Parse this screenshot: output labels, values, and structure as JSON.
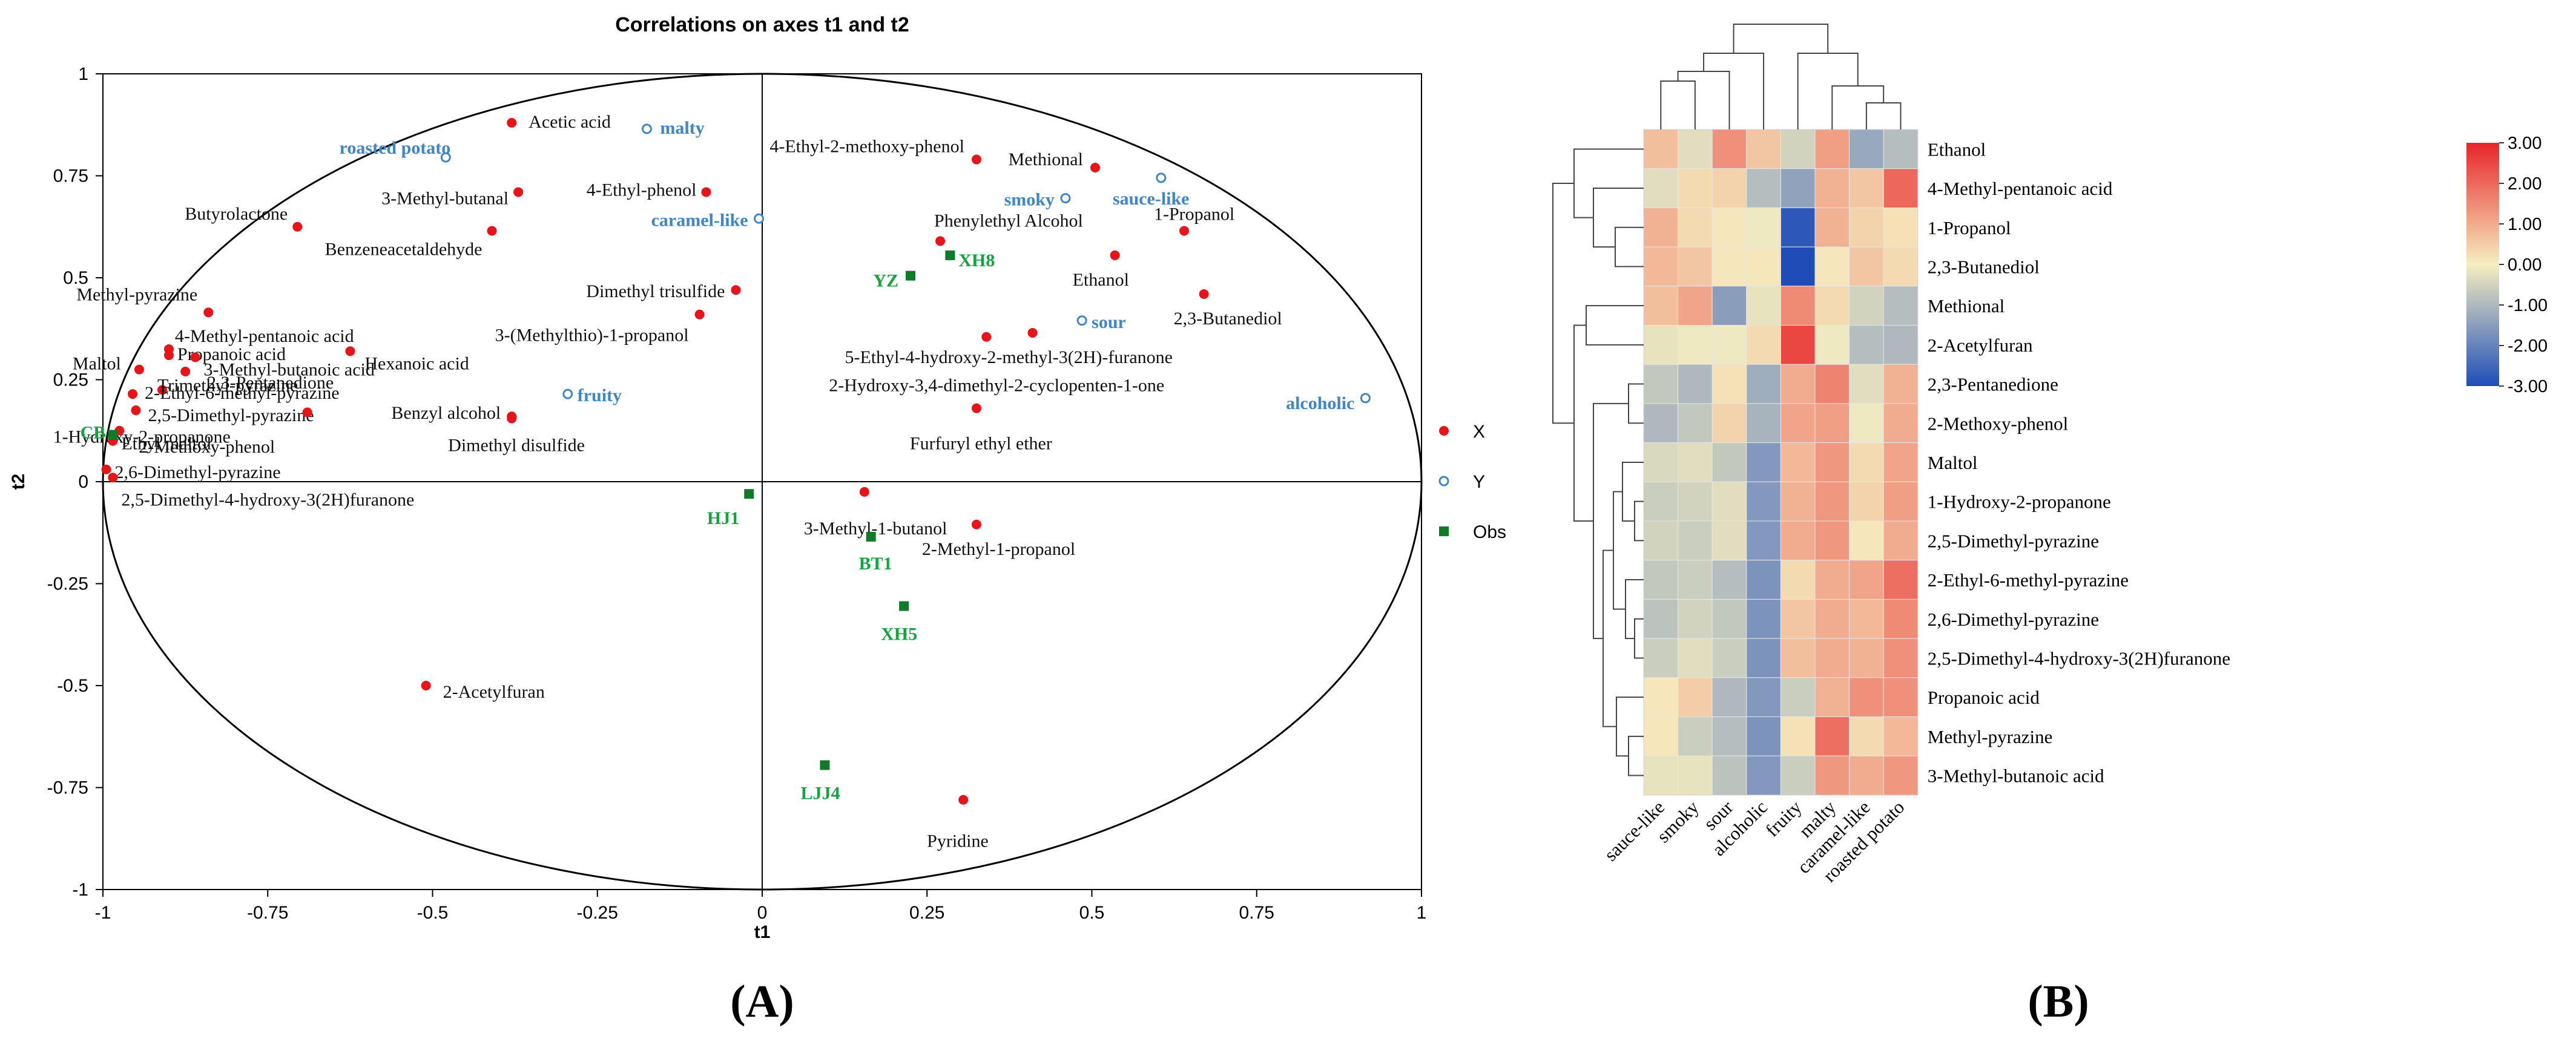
{
  "chart_data": [
    {
      "type": "scatter",
      "panel_label": "(A)",
      "title": "Correlations on axes t1 and t2",
      "xlabel": "t1",
      "ylabel": "t2",
      "xlim": [
        -1,
        1
      ],
      "ylim": [
        -1,
        1
      ],
      "xticks": [
        "-1",
        "-0.75",
        "-0.5",
        "-0.25",
        "0",
        "0.25",
        "0.5",
        "0.75",
        "1"
      ],
      "yticks": [
        "1",
        "0.75",
        "0.5",
        "0.25",
        "0",
        "-0.25",
        "-0.5",
        "-0.75",
        "-1"
      ],
      "legend": [
        "X",
        "Y",
        "Obs"
      ],
      "legend_placement": "right",
      "colors": {
        "X": "#e8141a",
        "Y": "#3f86c8",
        "Obs": "#0f7a27",
        "Obs_label": "#12a53d"
      },
      "series": [
        {
          "name": "X",
          "points": [
            {
              "label": "Acetic acid",
              "x": -0.38,
              "y": 0.88
            },
            {
              "label": "4-Ethyl-phenol",
              "x": -0.085,
              "y": 0.71
            },
            {
              "label": "3-Methyl-butanal",
              "x": -0.37,
              "y": 0.71
            },
            {
              "label": "Butyrolactone",
              "x": -0.705,
              "y": 0.625
            },
            {
              "label": "Benzeneacetaldehyde",
              "x": -0.41,
              "y": 0.615
            },
            {
              "label": "Dimethyl trisulfide",
              "x": -0.04,
              "y": 0.47
            },
            {
              "label": "3-(Methylthio)-1-propanol",
              "x": -0.095,
              "y": 0.41
            },
            {
              "label": "Methyl-pyrazine",
              "x": -0.84,
              "y": 0.415
            },
            {
              "label": "4-Methyl-pentanoic acid",
              "x": -0.9,
              "y": 0.325
            },
            {
              "label": "Propanoic acid",
              "x": -0.9,
              "y": 0.31
            },
            {
              "label": "3-Methyl-butanoic acid",
              "x": -0.86,
              "y": 0.305
            },
            {
              "label": "Hexanoic acid",
              "x": -0.625,
              "y": 0.32
            },
            {
              "label": "Maltol",
              "x": -0.945,
              "y": 0.275
            },
            {
              "label": "2,3-Pentanedione",
              "x": -0.875,
              "y": 0.27
            },
            {
              "label": "Trimethyl-pyrazine",
              "x": -0.91,
              "y": 0.225
            },
            {
              "label": "2-Ethyl-6-methyl-pyrazine",
              "x": -0.955,
              "y": 0.215
            },
            {
              "label": "2,5-Dimethyl-pyrazine",
              "x": -0.95,
              "y": 0.175
            },
            {
              "label": "1-Hydroxy-2-propanone",
              "x": -0.69,
              "y": 0.17
            },
            {
              "label": "2-Methoxy-phenol",
              "x": -0.975,
              "y": 0.125
            },
            {
              "label": "Ethyl maltol",
              "x": -0.985,
              "y": 0.1
            },
            {
              "label": "2,6-Dimethyl-pyrazine",
              "x": -0.995,
              "y": 0.03
            },
            {
              "label": "2,5-Dimethyl-4-hydroxy-3(2H)furanone",
              "x": -0.985,
              "y": 0.01
            },
            {
              "label": "Benzyl alcohol",
              "x": -0.38,
              "y": 0.16
            },
            {
              "label": "Dimethyl disulfide",
              "x": -0.38,
              "y": 0.155
            },
            {
              "label": "4-Ethyl-2-methoxy-phenol",
              "x": 0.325,
              "y": 0.79
            },
            {
              "label": "Methional",
              "x": 0.505,
              "y": 0.77
            },
            {
              "label": "1-Propanol",
              "x": 0.64,
              "y": 0.615
            },
            {
              "label": "Phenylethyl Alcohol",
              "x": 0.27,
              "y": 0.59
            },
            {
              "label": "Ethanol",
              "x": 0.535,
              "y": 0.555
            },
            {
              "label": "2,3-Butanediol",
              "x": 0.67,
              "y": 0.46
            },
            {
              "label": "5-Ethyl-4-hydroxy-2-methyl-3(2H)-furanone",
              "x": 0.41,
              "y": 0.365
            },
            {
              "label": "2-Hydroxy-3,4-dimethyl-2-cyclopenten-1-one",
              "x": 0.34,
              "y": 0.355
            },
            {
              "label": "Furfuryl ethyl ether",
              "x": 0.325,
              "y": 0.18
            },
            {
              "label": "3-Methyl-1-butanol",
              "x": 0.155,
              "y": -0.025
            },
            {
              "label": "2-Methyl-1-propanol",
              "x": 0.325,
              "y": -0.105
            },
            {
              "label": "2-Acetylfuran",
              "x": -0.51,
              "y": -0.5
            },
            {
              "label": "Pyridine",
              "x": 0.305,
              "y": -0.78
            }
          ]
        },
        {
          "name": "Y",
          "points": [
            {
              "label": "malty",
              "x": -0.175,
              "y": 0.865
            },
            {
              "label": "roasted potato",
              "x": -0.48,
              "y": 0.795
            },
            {
              "label": "caramel-like",
              "x": -0.005,
              "y": 0.645
            },
            {
              "label": "smoky",
              "x": 0.46,
              "y": 0.695
            },
            {
              "label": "sauce-like",
              "x": 0.605,
              "y": 0.745
            },
            {
              "label": "sour",
              "x": 0.485,
              "y": 0.395
            },
            {
              "label": "fruity",
              "x": -0.295,
              "y": 0.215
            },
            {
              "label": "alcoholic",
              "x": 0.915,
              "y": 0.205
            }
          ]
        },
        {
          "name": "Obs",
          "points": [
            {
              "label": "CB",
              "x": -0.985,
              "y": 0.115
            },
            {
              "label": "YZ",
              "x": 0.225,
              "y": 0.505
            },
            {
              "label": "XH8",
              "x": 0.285,
              "y": 0.555
            },
            {
              "label": "HJ1",
              "x": -0.02,
              "y": -0.03
            },
            {
              "label": "BT1",
              "x": 0.165,
              "y": -0.135
            },
            {
              "label": "XH5",
              "x": 0.215,
              "y": -0.305
            },
            {
              "label": "LJJ4",
              "x": 0.095,
              "y": -0.695
            }
          ]
        }
      ]
    },
    {
      "type": "heatmap",
      "panel_label": "(B)",
      "rows": [
        "Ethanol",
        "4-Methyl-pentanoic acid",
        "1-Propanol",
        "2,3-Butanediol",
        "Methional",
        "2-Acetylfuran",
        "2,3-Pentanedione",
        "2-Methoxy-phenol",
        "Maltol",
        "1-Hydroxy-2-propanone",
        "2,5-Dimethyl-pyrazine",
        "2-Ethyl-6-methyl-pyrazine",
        "2,6-Dimethyl-pyrazine",
        "2,5-Dimethyl-4-hydroxy-3(2H)furanone",
        "Propanoic acid",
        "Methyl-pyrazine",
        "3-Methyl-butanoic acid"
      ],
      "columns": [
        "sauce-like",
        "smoky",
        "sour",
        "alcoholic",
        "fruity",
        "malty",
        "caramel-like",
        "roasted potato"
      ],
      "values": [
        [
          0.7,
          -0.3,
          1.4,
          0.6,
          -0.5,
          1.2,
          -1.3,
          -0.9
        ],
        [
          -0.3,
          0.3,
          0.4,
          -0.9,
          -1.4,
          0.9,
          0.6,
          2.0
        ],
        [
          0.9,
          0.3,
          0.1,
          -0.1,
          -2.8,
          0.9,
          0.4,
          0.2
        ],
        [
          0.8,
          0.6,
          0.1,
          0.1,
          -3.0,
          0.1,
          0.6,
          0.3
        ],
        [
          0.7,
          1.1,
          -1.5,
          -0.2,
          1.5,
          0.3,
          -0.5,
          -0.9
        ],
        [
          -0.2,
          -0.1,
          -0.1,
          0.3,
          2.5,
          -0.1,
          -0.9,
          -1.0
        ],
        [
          -0.7,
          -1.0,
          0.2,
          -1.2,
          1.0,
          1.6,
          -0.3,
          0.9
        ],
        [
          -1.0,
          -0.7,
          0.4,
          -1.1,
          1.1,
          1.2,
          -0.1,
          1.0
        ],
        [
          -0.4,
          -0.3,
          -0.7,
          -1.6,
          0.8,
          1.3,
          0.3,
          1.1
        ],
        [
          -0.6,
          -0.5,
          -0.3,
          -1.6,
          0.9,
          1.3,
          0.4,
          1.2
        ],
        [
          -0.5,
          -0.6,
          -0.3,
          -1.6,
          1.0,
          1.3,
          0.1,
          1.0
        ],
        [
          -0.7,
          -0.6,
          -0.9,
          -1.7,
          0.3,
          1.0,
          1.1,
          1.9
        ],
        [
          -0.8,
          -0.5,
          -0.7,
          -1.7,
          0.6,
          1.0,
          0.8,
          1.5
        ],
        [
          -0.6,
          -0.3,
          -0.6,
          -1.7,
          0.7,
          1.0,
          0.9,
          1.4
        ],
        [
          0.1,
          0.5,
          -1.0,
          -1.6,
          -0.6,
          0.9,
          1.4,
          1.4
        ],
        [
          0.1,
          -0.6,
          -0.9,
          -1.7,
          0.2,
          1.9,
          0.3,
          0.8
        ],
        [
          -0.2,
          -0.2,
          -0.8,
          -1.6,
          -0.6,
          1.3,
          1.0,
          1.3
        ]
      ],
      "colorbar": {
        "ticks": [
          "3.00",
          "2.00",
          "1.00",
          "0.00",
          "-1.00",
          "-2.00",
          "-3.00"
        ],
        "range": [
          -3,
          3
        ],
        "colors": {
          "low": "#1f4db8",
          "mid": "#f5eec0",
          "high": "#e8252a"
        }
      }
    }
  ]
}
